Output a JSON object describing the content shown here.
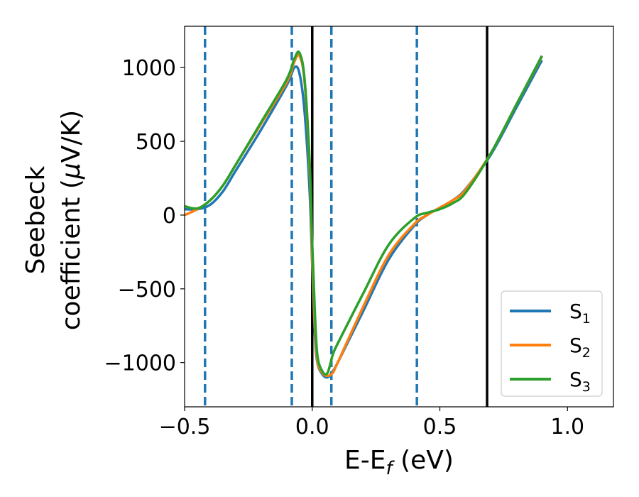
{
  "chart_data": {
    "type": "line",
    "xlabel": "E-E",
    "xlabel_sub": "f",
    "xlabel_unit": " (eV)",
    "ylabel_line1": "Seebeck",
    "ylabel_line2_pre": "coefficient  (",
    "ylabel_mu": "μ",
    "ylabel_line2_post": "V/K)",
    "xlim": [
      -0.5,
      1.18
    ],
    "ylim": [
      -1300,
      1280
    ],
    "xticks": [
      -0.5,
      0.0,
      0.5,
      1.0
    ],
    "xtick_labels": [
      "−0.5",
      "0.0",
      "0.5",
      "1.0"
    ],
    "yticks": [
      -1000,
      -500,
      0,
      500,
      1000
    ],
    "ytick_labels": [
      "−1000",
      "−500",
      "0",
      "500",
      "1000"
    ],
    "grid": false,
    "legend_position": "lower-right",
    "vlines_dashed": {
      "x": [
        -0.42,
        -0.08,
        0.075,
        0.41
      ],
      "color": "#1f77b4"
    },
    "vlines_solid": {
      "x": [
        0.0,
        0.685
      ],
      "color": "#000000"
    },
    "series": [
      {
        "name": "S",
        "sub": "1",
        "color": "#1f77b4",
        "x": [
          -0.5,
          -0.45,
          -0.4,
          -0.35,
          -0.3,
          -0.2,
          -0.1,
          -0.07,
          -0.05,
          -0.03,
          -0.01,
          0.0,
          0.01,
          0.02,
          0.04,
          0.06,
          0.08,
          0.1,
          0.2,
          0.3,
          0.4,
          0.45,
          0.5,
          0.55,
          0.6,
          0.7,
          0.8,
          0.9
        ],
        "y": [
          40,
          40,
          70,
          160,
          300,
          580,
          880,
          1000,
          960,
          700,
          150,
          -350,
          -800,
          -1000,
          -1080,
          -1100,
          -1060,
          -1000,
          -650,
          -300,
          -70,
          0,
          50,
          100,
          175,
          410,
          730,
          1050
        ]
      },
      {
        "name": "S",
        "sub": "2",
        "color": "#ff7f0e",
        "x": [
          -0.5,
          -0.45,
          -0.4,
          -0.35,
          -0.3,
          -0.2,
          -0.1,
          -0.07,
          -0.05,
          -0.03,
          -0.01,
          0.0,
          0.01,
          0.02,
          0.04,
          0.06,
          0.08,
          0.1,
          0.2,
          0.3,
          0.4,
          0.45,
          0.5,
          0.55,
          0.6,
          0.7,
          0.8,
          0.9
        ],
        "y": [
          0,
          40,
          100,
          200,
          340,
          620,
          900,
          1040,
          1080,
          900,
          300,
          -300,
          -750,
          -990,
          -1070,
          -1090,
          -1070,
          -1000,
          -620,
          -270,
          -60,
          0,
          50,
          100,
          170,
          420,
          750,
          1075
        ]
      },
      {
        "name": "S",
        "sub": "3",
        "color": "#2ca02c",
        "x": [
          -0.5,
          -0.45,
          -0.4,
          -0.35,
          -0.3,
          -0.2,
          -0.1,
          -0.07,
          -0.05,
          -0.03,
          -0.01,
          0.0,
          0.01,
          0.02,
          0.04,
          0.06,
          0.08,
          0.1,
          0.2,
          0.3,
          0.4,
          0.45,
          0.5,
          0.55,
          0.6,
          0.7,
          0.8,
          0.9
        ],
        "y": [
          60,
          45,
          100,
          200,
          340,
          630,
          920,
          1060,
          1100,
          920,
          350,
          -200,
          -650,
          -950,
          -1060,
          -1070,
          -950,
          -870,
          -530,
          -200,
          -20,
          15,
          40,
          80,
          150,
          420,
          750,
          1080
        ]
      }
    ]
  }
}
